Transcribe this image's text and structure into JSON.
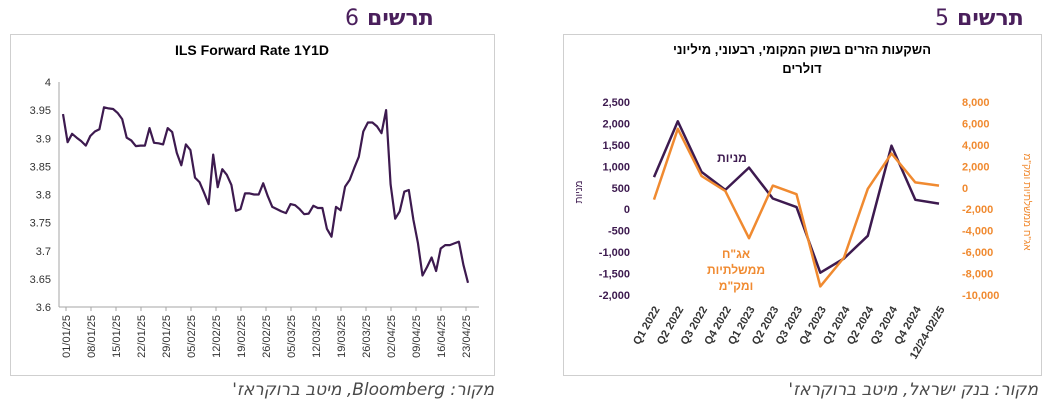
{
  "left": {
    "heading_word": "תרשים",
    "heading_num": "6",
    "source": "מקור: Bloomberg, מיטב ברוקראז'",
    "chart_data": {
      "type": "line",
      "title": "ILS Forward Rate 1Y1D",
      "xlabel": "",
      "ylabel": "",
      "ylim": [
        3.6,
        4.0
      ],
      "yticks": [
        "4",
        "3.95",
        "3.9",
        "3.85",
        "3.8",
        "3.75",
        "3.7",
        "3.65",
        "3.6"
      ],
      "grid": false,
      "color": "#3d1a4f",
      "xtick_labels": [
        "01/01/25",
        "08/01/25",
        "15/01/25",
        "22/01/25",
        "29/01/25",
        "05/02/25",
        "12/02/25",
        "19/02/25",
        "26/02/25",
        "05/03/25",
        "12/03/25",
        "19/03/25",
        "26/03/25",
        "02/04/25",
        "09/04/25",
        "16/04/25",
        "23/04/25"
      ],
      "values": [
        3.943,
        3.893,
        3.908,
        3.901,
        3.895,
        3.887,
        3.904,
        3.912,
        3.916,
        3.955,
        3.953,
        3.952,
        3.945,
        3.934,
        3.901,
        3.896,
        3.886,
        3.887,
        3.887,
        3.918,
        3.892,
        3.891,
        3.889,
        3.918,
        3.911,
        3.874,
        3.852,
        3.889,
        3.879,
        3.83,
        3.822,
        3.803,
        3.783,
        3.871,
        3.813,
        3.845,
        3.835,
        3.817,
        3.771,
        3.774,
        3.802,
        3.802,
        3.8,
        3.8,
        3.82,
        3.797,
        3.778,
        3.774,
        3.77,
        3.767,
        3.783,
        3.781,
        3.774,
        3.765,
        3.766,
        3.78,
        3.776,
        3.776,
        3.739,
        3.725,
        3.778,
        3.772,
        3.814,
        3.826,
        3.847,
        3.867,
        3.912,
        3.928,
        3.928,
        3.921,
        3.909,
        3.95,
        3.818,
        3.757,
        3.77,
        3.805,
        3.808,
        3.755,
        3.714,
        3.656,
        3.671,
        3.688,
        3.664,
        3.704,
        3.71,
        3.71,
        3.713,
        3.716,
        3.675,
        3.643
      ]
    }
  },
  "right": {
    "heading_word": "תרשים",
    "heading_num": "5",
    "source": "מקור: בנק ישראל, מיטב ברוקראז'",
    "chart_data": {
      "type": "line",
      "title_lines": [
        "השקעות הזרים בשוק המקומי, רבעוני, מיליוני",
        "דולרים"
      ],
      "categories": [
        "Q1 2022",
        "Q2 2022",
        "Q3 2022",
        "Q4 2022",
        "Q1 2023",
        "Q2 2023",
        "Q3 2023",
        "Q4 2023",
        "Q1 2024",
        "Q2 2024",
        "Q3 2024",
        "Q4 2024",
        "12/24-02/25"
      ],
      "left_axis": {
        "label": "מניות",
        "ylim": [
          -2000,
          2500
        ],
        "ticks": [
          "2,500",
          "2,000",
          "1,500",
          "1,000",
          "500",
          "0",
          "-500",
          "-1,000",
          "-1,500",
          "-2,000"
        ]
      },
      "right_axis": {
        "label": "אג\"ח ממשלתיות ומק\"מ",
        "ylim": [
          -10000,
          8000
        ],
        "ticks": [
          "8,000",
          "6,000",
          "4,000",
          "2,000",
          "0",
          "-2,000",
          "-4,000",
          "-6,000",
          "-8,000",
          "-10,000"
        ]
      },
      "series": [
        {
          "name": "מניות",
          "axis": "left",
          "color": "#3d1a4f",
          "values": [
            750,
            2050,
            870,
            450,
            970,
            250,
            50,
            -1480,
            -1150,
            -620,
            1480,
            220,
            130
          ]
        },
        {
          "name": "אג\"ח ממשלתיות ומק\"מ",
          "axis": "right",
          "color": "#f08a30",
          "values": [
            -1100,
            5500,
            1100,
            -300,
            -4700,
            200,
            -600,
            -9200,
            -6500,
            -100,
            3200,
            500,
            200
          ]
        }
      ],
      "annotations": {
        "equities": "מניות",
        "bonds_lines": [
          "אג\"ח",
          "ממשלתיות",
          "ומק\"מ"
        ]
      },
      "grid": false
    }
  }
}
